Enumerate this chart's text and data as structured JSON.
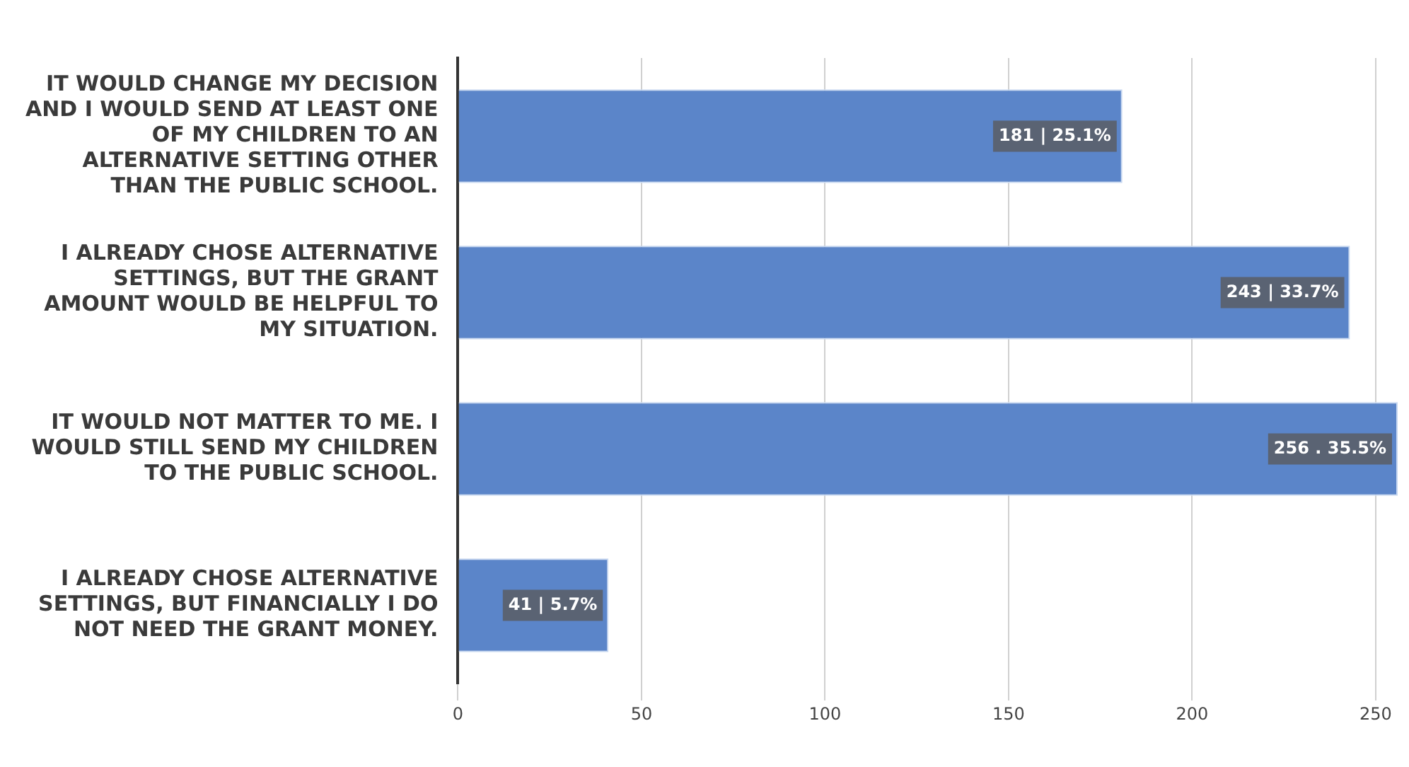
{
  "chart_data": {
    "type": "bar",
    "orientation": "horizontal",
    "categories": [
      "IT WOULD CHANGE MY DECISION AND I WOULD SEND AT LEAST ONE OF MY CHILDREN TO AN ALTERNATIVE SETTING OTHER THAN THE PUBLIC SCHOOL.",
      "I ALREADY CHOSE ALTERNATIVE SETTINGS, BUT THE GRANT AMOUNT WOULD BE HELPFUL TO MY SITUATION.",
      "IT WOULD NOT MATTER TO ME. I WOULD STILL SEND MY CHILDREN TO THE PUBLIC SCHOOL.",
      "I ALREADY CHOSE ALTERNATIVE SETTINGS, BUT FINANCIALLY I DO NOT NEED THE GRANT MONEY."
    ],
    "values": [
      181,
      243,
      256,
      41
    ],
    "value_labels": [
      "181 | 25.1%",
      "243 | 33.7%",
      "256 . 35.5%",
      "41 | 5.7%"
    ],
    "color": "#5b85c9",
    "xlim": [
      0,
      256
    ],
    "xticks": [
      0,
      50,
      100,
      150,
      200,
      250
    ],
    "grid": "x"
  }
}
